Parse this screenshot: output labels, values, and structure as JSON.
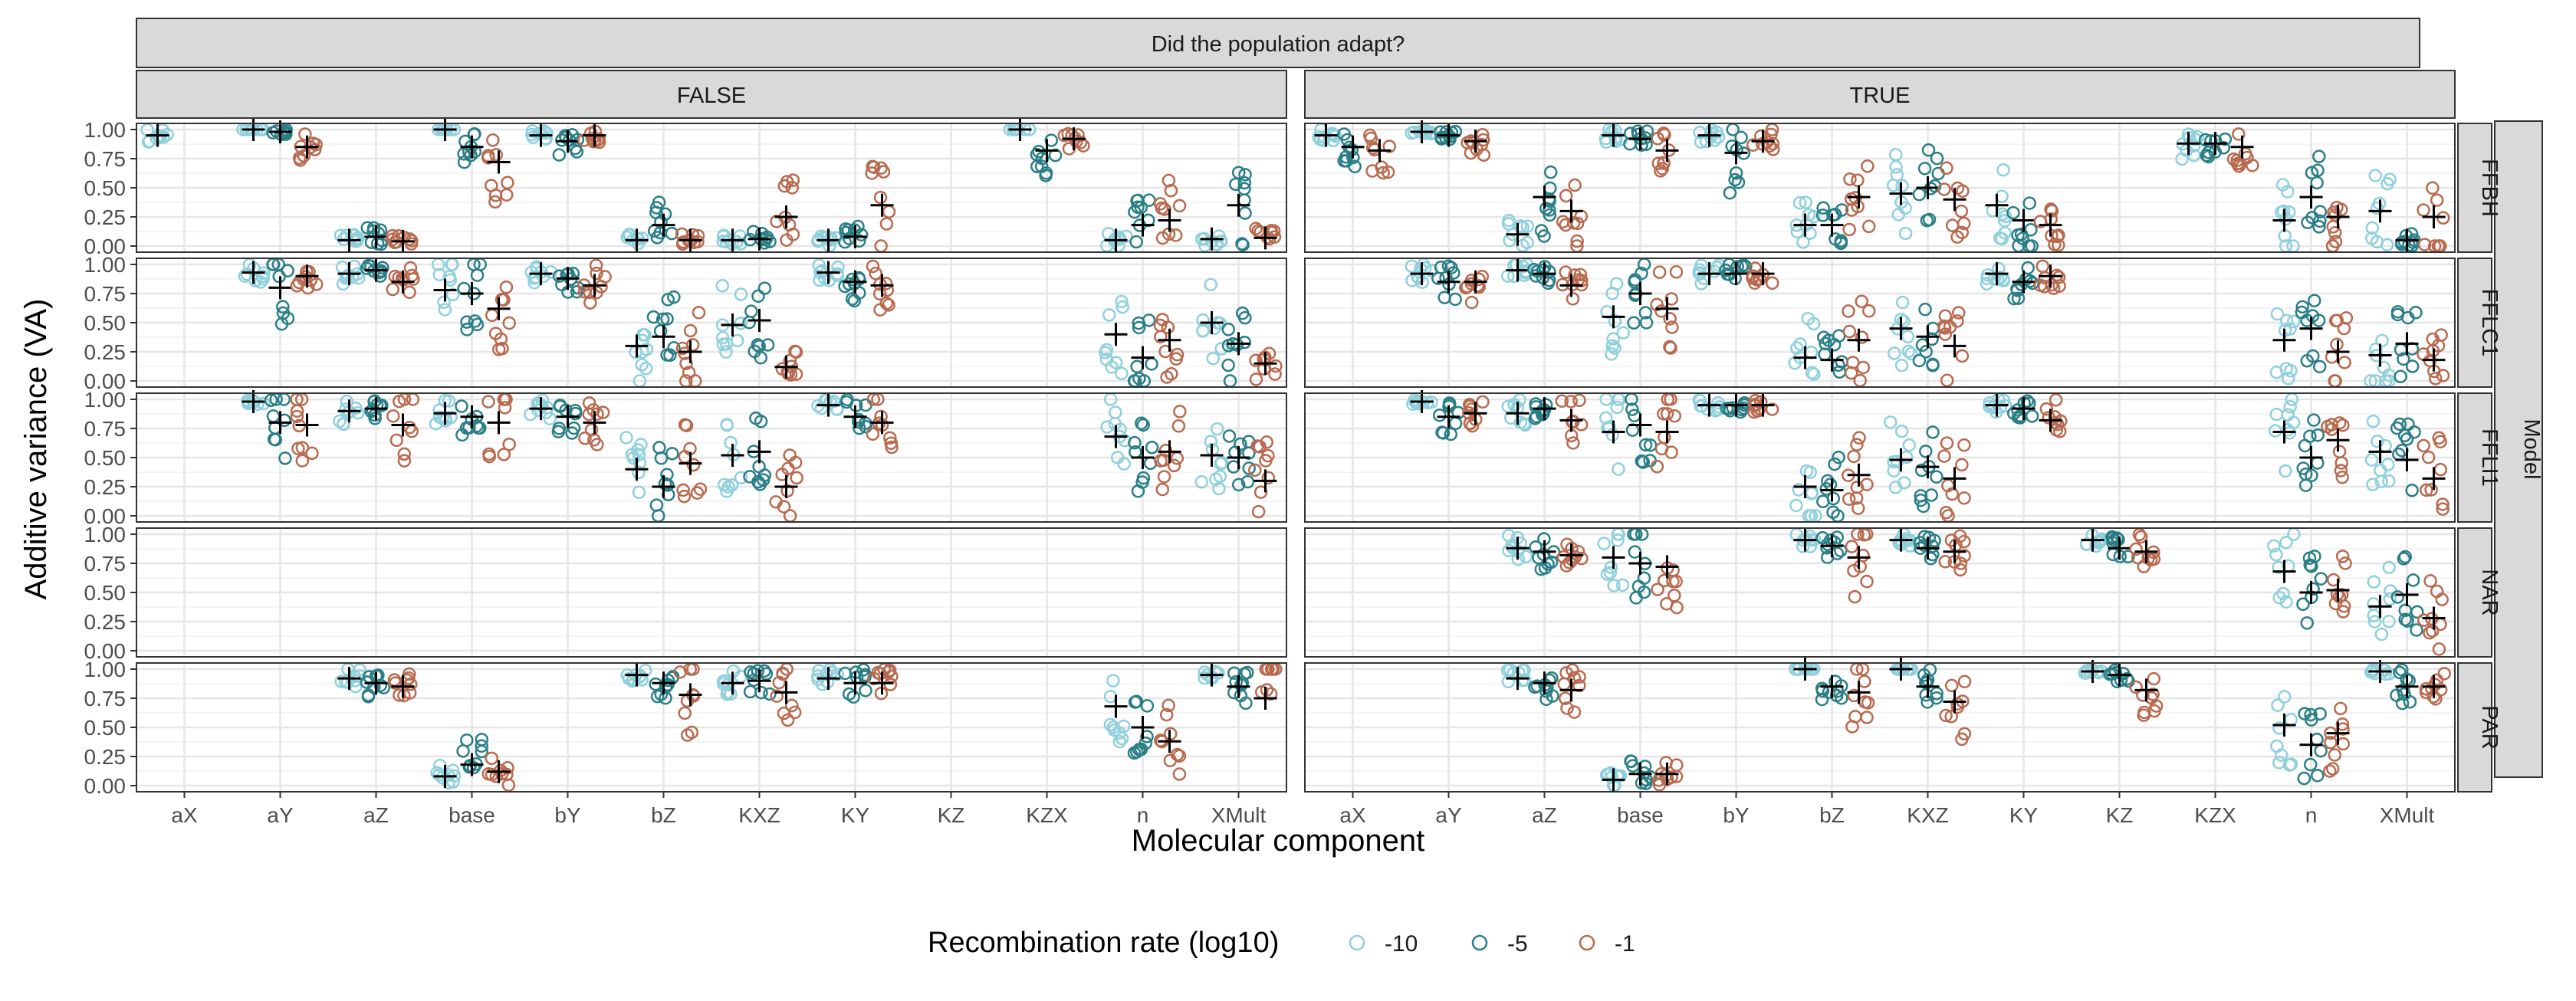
{
  "chart_data": {
    "type": "scatter",
    "xlabel": "Molecular component",
    "ylabel": "Additive variance (VA)",
    "column_strip_title": "Did the population adapt?",
    "row_strip_title": "Model",
    "columns": [
      "FALSE",
      "TRUE"
    ],
    "rows": [
      "FFBH",
      "FFLC1",
      "FFLI1",
      "NAR",
      "PAR"
    ],
    "categories": [
      "aX",
      "aY",
      "aZ",
      "base",
      "bY",
      "bZ",
      "KXZ",
      "KY",
      "KZ",
      "KZX",
      "n",
      "XMult"
    ],
    "y_ticks": [
      "0.00",
      "0.25",
      "0.50",
      "0.75",
      "1.00"
    ],
    "ylim": [
      0,
      1
    ],
    "legend": {
      "title": "Recombination rate (log10)",
      "position": "bottom",
      "entries": [
        {
          "label": "-10",
          "color": "#8fd0dc"
        },
        {
          "label": "-5",
          "color": "#2a7f86"
        },
        {
          "label": "-1",
          "color": "#b86a4f"
        }
      ]
    },
    "series_colors": [
      "#8fd0dc",
      "#2a7f86",
      "#b86a4f"
    ],
    "mean_marker": "black plus",
    "panels": [
      {
        "column": "FALSE",
        "row": "FFBH",
        "means": {
          "aX": [
            0.95,
            null,
            null
          ],
          "aY": [
            1.0,
            0.98,
            0.85
          ],
          "aZ": [
            0.05,
            0.08,
            0.04
          ],
          "base": [
            1.0,
            0.85,
            0.72
          ],
          "bY": [
            0.95,
            0.9,
            0.95
          ],
          "bZ": [
            0.05,
            0.18,
            0.05
          ],
          "KXZ": [
            0.05,
            0.06,
            0.25
          ],
          "KY": [
            0.05,
            0.08,
            0.35
          ],
          "KZX": [
            1.0,
            0.82,
            0.92
          ],
          "n": [
            0.05,
            0.18,
            0.22
          ],
          "XMult": [
            0.06,
            0.35,
            0.07
          ]
        }
      },
      {
        "column": "FALSE",
        "row": "FFLC1",
        "means": {
          "aY": [
            0.93,
            0.8,
            0.9
          ],
          "aZ": [
            0.92,
            0.95,
            0.85
          ],
          "base": [
            0.78,
            0.75,
            0.62
          ],
          "bY": [
            0.92,
            0.88,
            0.82
          ],
          "bZ": [
            0.3,
            0.38,
            0.25
          ],
          "KXZ": [
            0.48,
            0.52,
            0.12
          ],
          "KY": [
            0.93,
            0.85,
            0.82
          ],
          "n": [
            0.4,
            0.2,
            0.35
          ],
          "XMult": [
            0.5,
            0.32,
            0.15
          ]
        }
      },
      {
        "column": "FALSE",
        "row": "FFLI1",
        "means": {
          "aY": [
            0.98,
            0.8,
            0.78
          ],
          "aZ": [
            0.9,
            0.92,
            0.78
          ],
          "base": [
            0.88,
            0.85,
            0.8
          ],
          "bY": [
            0.92,
            0.85,
            0.8
          ],
          "bZ": [
            0.4,
            0.25,
            0.45
          ],
          "KXZ": [
            0.52,
            0.55,
            0.25
          ],
          "KY": [
            0.95,
            0.85,
            0.8
          ],
          "n": [
            0.68,
            0.5,
            0.55
          ],
          "XMult": [
            0.52,
            0.5,
            0.3
          ]
        }
      },
      {
        "column": "FALSE",
        "row": "NAR",
        "means": {}
      },
      {
        "column": "FALSE",
        "row": "PAR",
        "means": {
          "aZ": [
            0.92,
            0.88,
            0.85
          ],
          "base": [
            0.08,
            0.18,
            0.12
          ],
          "bZ": [
            0.95,
            0.88,
            0.78
          ],
          "KXZ": [
            0.88,
            0.9,
            0.8
          ],
          "KY": [
            0.92,
            0.88,
            0.88
          ],
          "n": [
            0.68,
            0.5,
            0.38
          ],
          "XMult": [
            0.95,
            0.85,
            0.75
          ]
        }
      },
      {
        "column": "TRUE",
        "row": "FFBH",
        "means": {
          "aX": [
            0.95,
            0.85,
            0.82
          ],
          "aY": [
            0.98,
            0.95,
            0.9
          ],
          "aZ": [
            0.1,
            0.42,
            0.3
          ],
          "base": [
            0.95,
            0.92,
            0.82
          ],
          "bY": [
            0.95,
            0.8,
            0.9
          ],
          "bZ": [
            0.18,
            0.18,
            0.42
          ],
          "KXZ": [
            0.45,
            0.5,
            0.4
          ],
          "KY": [
            0.35,
            0.22,
            0.18
          ],
          "KZX": [
            0.88,
            0.88,
            0.85
          ],
          "n": [
            0.22,
            0.42,
            0.25
          ],
          "XMult": [
            0.3,
            0.05,
            0.25
          ]
        }
      },
      {
        "column": "TRUE",
        "row": "FFLC1",
        "means": {
          "aY": [
            0.92,
            0.85,
            0.85
          ],
          "aZ": [
            0.95,
            0.92,
            0.82
          ],
          "base": [
            0.55,
            0.75,
            0.62
          ],
          "bY": [
            0.92,
            0.92,
            0.92
          ],
          "bZ": [
            0.2,
            0.18,
            0.35
          ],
          "KXZ": [
            0.45,
            0.38,
            0.3
          ],
          "KY": [
            0.92,
            0.85,
            0.9
          ],
          "n": [
            0.35,
            0.45,
            0.25
          ],
          "XMult": [
            0.22,
            0.32,
            0.18
          ]
        }
      },
      {
        "column": "TRUE",
        "row": "FFLI1",
        "means": {
          "aY": [
            0.98,
            0.85,
            0.88
          ],
          "aZ": [
            0.88,
            0.92,
            0.82
          ],
          "base": [
            0.72,
            0.78,
            0.72
          ],
          "bY": [
            0.95,
            0.95,
            0.95
          ],
          "bZ": [
            0.25,
            0.22,
            0.35
          ],
          "KXZ": [
            0.48,
            0.42,
            0.32
          ],
          "KY": [
            0.95,
            0.92,
            0.82
          ],
          "n": [
            0.72,
            0.5,
            0.65
          ],
          "XMult": [
            0.55,
            0.48,
            0.32
          ]
        }
      },
      {
        "column": "TRUE",
        "row": "NAR",
        "means": {
          "aZ": [
            0.88,
            0.85,
            0.82
          ],
          "base": [
            0.8,
            0.75,
            0.72
          ],
          "bZ": [
            0.95,
            0.9,
            0.8
          ],
          "KXZ": [
            0.95,
            0.88,
            0.85
          ],
          "KZ": [
            0.95,
            0.88,
            0.85
          ],
          "n": [
            0.68,
            0.5,
            0.52
          ],
          "XMult": [
            0.38,
            0.48,
            0.28
          ]
        }
      },
      {
        "column": "TRUE",
        "row": "PAR",
        "means": {
          "aZ": [
            0.92,
            0.88,
            0.82
          ],
          "base": [
            0.05,
            0.1,
            0.1
          ],
          "bZ": [
            1.0,
            0.85,
            0.8
          ],
          "KXZ": [
            1.0,
            0.85,
            0.72
          ],
          "KZ": [
            0.98,
            0.95,
            0.82
          ],
          "n": [
            0.52,
            0.35,
            0.45
          ],
          "XMult": [
            0.98,
            0.85,
            0.85
          ]
        }
      }
    ]
  }
}
